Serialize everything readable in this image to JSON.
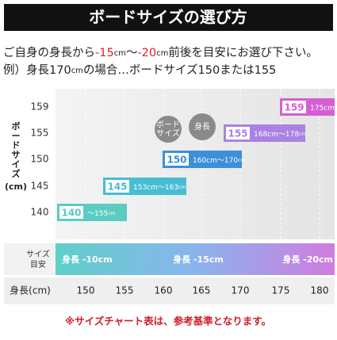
{
  "header": {
    "title": "ボードサイズの選び方"
  },
  "intro": {
    "line1": [
      "ご自身の身長から",
      "-15",
      "cm",
      "〜",
      "-20",
      "cm",
      "前後を目安にお選び下さい。"
    ],
    "line2": [
      "例）身長170",
      "cm",
      "の場合…ボードサイズ150または155"
    ]
  },
  "y_label": {
    "text": "ボードサイズ",
    "unit": "(cm)"
  },
  "y_ticks": [
    "159",
    "155",
    "150",
    "145",
    "140"
  ],
  "bars": [
    {
      "size": "140",
      "range": "〜155",
      "unit": "cm"
    },
    {
      "size": "145",
      "range": "153cm〜163",
      "unit": "cm"
    },
    {
      "size": "150",
      "range": "160cm〜170",
      "unit": "cm"
    },
    {
      "size": "155",
      "range": "168cm〜178",
      "unit": "cm"
    },
    {
      "size": "159",
      "range": "175cm〜",
      "unit": ""
    }
  ],
  "bubbles": [
    [
      "ボード",
      "サイズ"
    ],
    [
      "身長"
    ]
  ],
  "guide": {
    "label": [
      "サイズ",
      "目安"
    ],
    "items": [
      "身長 -10cm",
      "身長 -15cm",
      "身長 -20cm"
    ]
  },
  "x_axis": {
    "label": "身長(cm)",
    "ticks": [
      "150",
      "155",
      "160",
      "165",
      "170",
      "175",
      "180"
    ]
  },
  "note": "※サイズチャート表は、参考基準となります。"
}
